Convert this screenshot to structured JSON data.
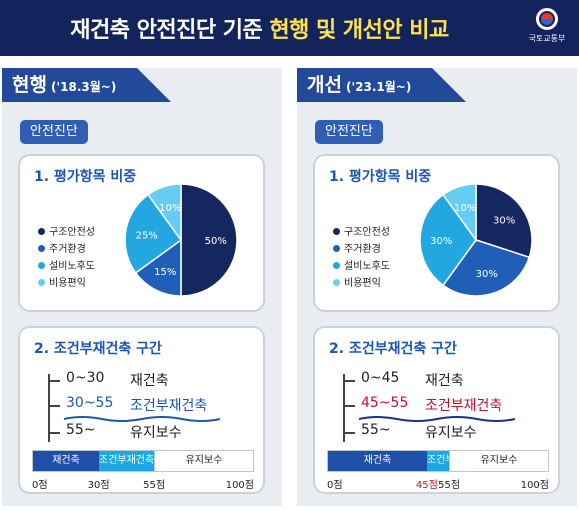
{
  "header": {
    "title_prefix": "재건축 안전진단 기준 ",
    "title_highlight": "현행 및 개선안 비교",
    "ministry": "국토교통부",
    "bg_color": "#13235b",
    "highlight_color": "#ffe14d"
  },
  "panels": [
    {
      "tab_main": "현행",
      "tab_sub": "('18.3월~)",
      "badge": "안전진단",
      "section1_title": "1. 평가항목 비중",
      "legend": [
        {
          "label": "구조안전성",
          "color": "#14275e"
        },
        {
          "label": "주거환경",
          "color": "#1f5fb8"
        },
        {
          "label": "설비노후도",
          "color": "#22a7e0"
        },
        {
          "label": "비용편익",
          "color": "#66cdf2"
        }
      ],
      "chart_data": {
        "type": "pie",
        "categories": [
          "구조안전성",
          "주거환경",
          "설비노후도",
          "비용편익"
        ],
        "values": [
          50,
          15,
          25,
          10
        ],
        "data_labels": [
          "50%",
          "15%",
          "25%",
          "10%"
        ],
        "colors": [
          "#14275e",
          "#1f5fb8",
          "#22a7e0",
          "#66cdf2"
        ]
      },
      "section2_title": "2. 조건부재건축 구간",
      "tree": [
        {
          "range": "0~30",
          "label": "재건축"
        },
        {
          "range": "30~55",
          "label": "조건부재건축"
        },
        {
          "range": "55~",
          "label": "유지보수"
        }
      ],
      "bar": {
        "segments": [
          {
            "label": "재건축",
            "from": 0,
            "to": 30
          },
          {
            "label": "조건부재건축",
            "from": 30,
            "to": 55
          },
          {
            "label": "유지보수",
            "from": 55,
            "to": 100
          }
        ],
        "ticks": [
          {
            "label": "0점",
            "value": 0
          },
          {
            "label": "30점",
            "value": 30
          },
          {
            "label": "55점",
            "value": 55
          },
          {
            "label": "100점",
            "value": 100
          }
        ]
      }
    },
    {
      "tab_main": "개선",
      "tab_sub": "('23.1월~)",
      "badge": "안전진단",
      "section1_title": "1. 평가항목 비중",
      "legend": [
        {
          "label": "구조안전성",
          "color": "#14275e"
        },
        {
          "label": "주거환경",
          "color": "#1f5fb8"
        },
        {
          "label": "설비노후도",
          "color": "#22a7e0"
        },
        {
          "label": "비용편익",
          "color": "#66cdf2"
        }
      ],
      "chart_data": {
        "type": "pie",
        "categories": [
          "구조안전성",
          "주거환경",
          "설비노후도",
          "비용편익"
        ],
        "values": [
          30,
          30,
          30,
          10
        ],
        "data_labels": [
          "30%",
          "30%",
          "30%",
          "10%"
        ],
        "colors": [
          "#14275e",
          "#1f5fb8",
          "#22a7e0",
          "#66cdf2"
        ]
      },
      "section2_title": "2. 조건부재건축 구간",
      "tree": [
        {
          "range": "0~45",
          "label": "재건축"
        },
        {
          "range": "45~55",
          "label": "조건부재건축"
        },
        {
          "range": "55~",
          "label": "유지보수"
        }
      ],
      "bar": {
        "segments": [
          {
            "label": "재건축",
            "from": 0,
            "to": 45
          },
          {
            "label": "조건부재건축",
            "from": 45,
            "to": 55
          },
          {
            "label": "유지보수",
            "from": 55,
            "to": 100
          }
        ],
        "ticks": [
          {
            "label": "0점",
            "value": 0
          },
          {
            "label": "45점",
            "value": 45
          },
          {
            "label": "55점",
            "value": 55
          },
          {
            "label": "100점",
            "value": 100
          }
        ]
      }
    }
  ]
}
